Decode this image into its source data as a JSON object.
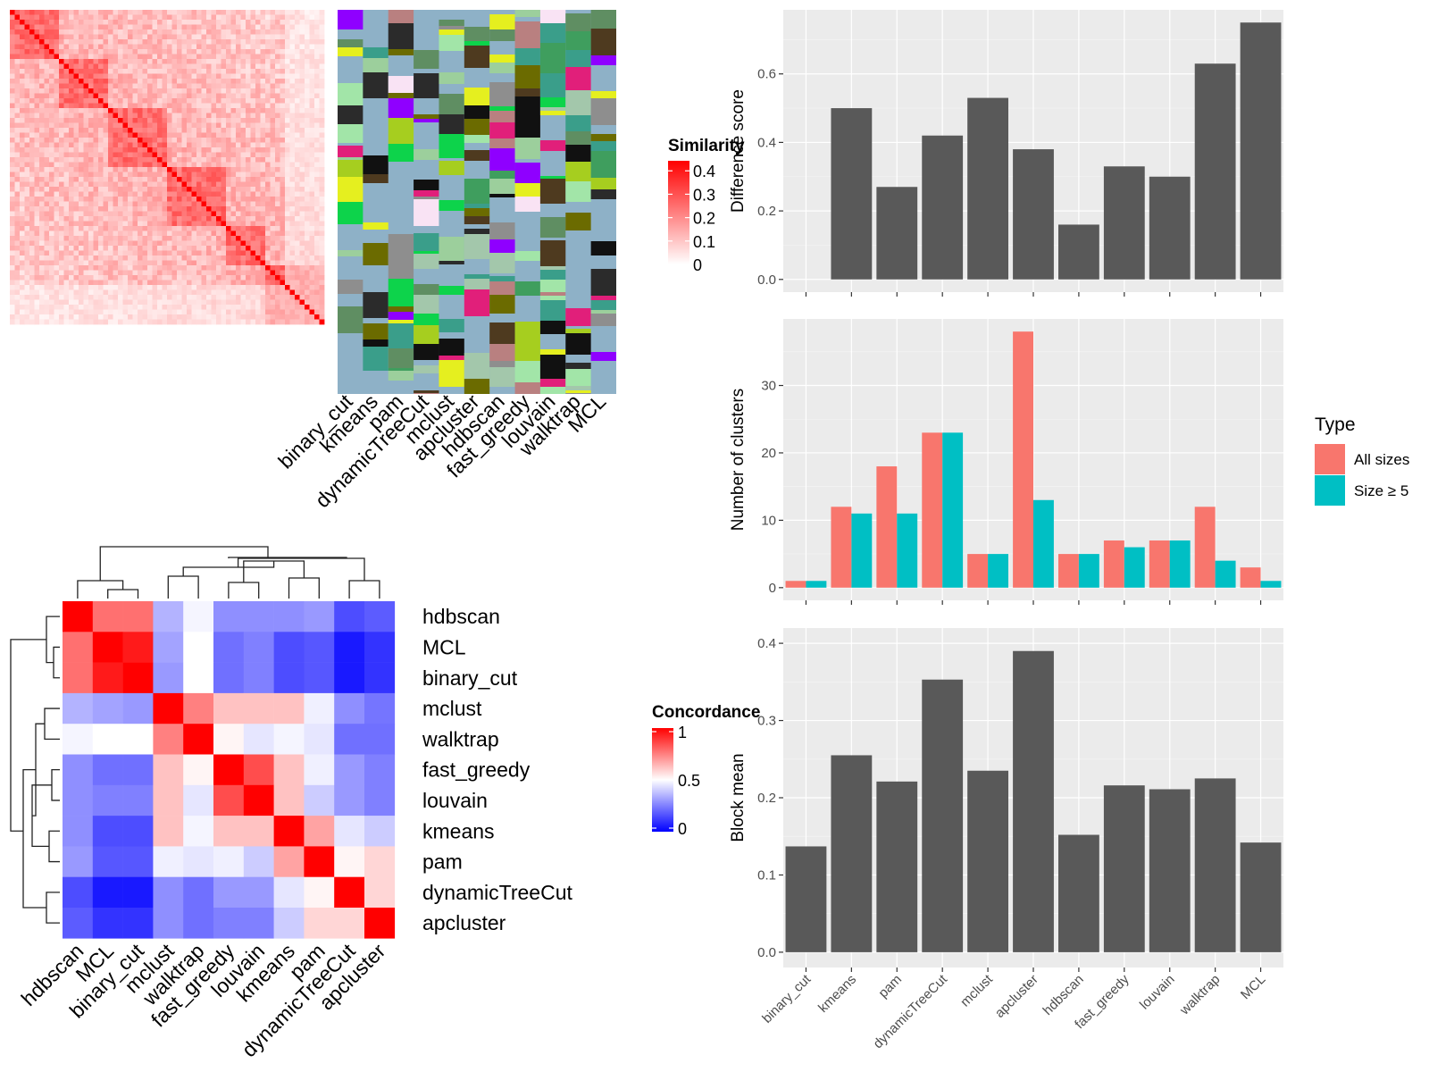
{
  "methods": [
    "binary_cut",
    "kmeans",
    "pam",
    "dynamicTreeCut",
    "mclust",
    "apcluster",
    "hdbscan",
    "fast_greedy",
    "louvain",
    "walktrap",
    "MCL"
  ],
  "similarity_legend": {
    "title": "Similarity",
    "ticks": [
      "0.4",
      "0.3",
      "0.2",
      "0.1",
      "0"
    ]
  },
  "concordance_legend": {
    "title": "Concordance",
    "ticks": [
      "1",
      "0.5",
      "0"
    ]
  },
  "concordance_order": [
    "hdbscan",
    "MCL",
    "binary_cut",
    "mclust",
    "walktrap",
    "fast_greedy",
    "louvain",
    "kmeans",
    "pam",
    "dynamicTreeCut",
    "apcluster"
  ],
  "concordance_matrix": [
    [
      1.0,
      0.78,
      0.78,
      0.35,
      0.48,
      0.28,
      0.28,
      0.28,
      0.3,
      0.15,
      0.18
    ],
    [
      0.78,
      1.0,
      0.95,
      0.32,
      0.5,
      0.22,
      0.25,
      0.15,
      0.17,
      0.05,
      0.1
    ],
    [
      0.78,
      0.95,
      1.0,
      0.3,
      0.5,
      0.22,
      0.25,
      0.15,
      0.17,
      0.05,
      0.1
    ],
    [
      0.35,
      0.32,
      0.3,
      1.0,
      0.75,
      0.62,
      0.62,
      0.62,
      0.47,
      0.28,
      0.23
    ],
    [
      0.48,
      0.5,
      0.5,
      0.75,
      1.0,
      0.52,
      0.45,
      0.48,
      0.45,
      0.22,
      0.22
    ],
    [
      0.28,
      0.22,
      0.22,
      0.62,
      0.52,
      1.0,
      0.85,
      0.62,
      0.47,
      0.3,
      0.25
    ],
    [
      0.28,
      0.25,
      0.25,
      0.62,
      0.45,
      0.85,
      1.0,
      0.62,
      0.4,
      0.3,
      0.25
    ],
    [
      0.28,
      0.15,
      0.15,
      0.62,
      0.48,
      0.62,
      0.62,
      1.0,
      0.68,
      0.45,
      0.4
    ],
    [
      0.3,
      0.17,
      0.17,
      0.47,
      0.45,
      0.47,
      0.4,
      0.68,
      1.0,
      0.52,
      0.58
    ],
    [
      0.15,
      0.05,
      0.05,
      0.28,
      0.22,
      0.3,
      0.3,
      0.45,
      0.52,
      1.0,
      0.58
    ],
    [
      0.18,
      0.1,
      0.1,
      0.28,
      0.22,
      0.25,
      0.25,
      0.4,
      0.58,
      0.58,
      1.0
    ]
  ],
  "chart_data": [
    {
      "type": "heatmap",
      "title": "",
      "description_note": "",
      "legend_title": "Similarity",
      "scale": [
        0,
        0.4
      ]
    },
    {
      "type": "heatmap",
      "legend_title": "Concordance",
      "rows": [
        "hdbscan",
        "MCL",
        "binary_cut",
        "mclust",
        "walktrap",
        "fast_greedy",
        "louvain",
        "kmeans",
        "pam",
        "dynamicTreeCut",
        "apcluster"
      ],
      "cols": [
        "hdbscan",
        "MCL",
        "binary_cut",
        "mclust",
        "walktrap",
        "fast_greedy",
        "louvain",
        "kmeans",
        "pam",
        "dynamicTreeCut",
        "apcluster"
      ],
      "scale": [
        0,
        1
      ]
    },
    {
      "type": "bar",
      "categories": [
        "binary_cut",
        "kmeans",
        "pam",
        "dynamicTreeCut",
        "mclust",
        "apcluster",
        "hdbscan",
        "fast_greedy",
        "louvain",
        "walktrap",
        "MCL"
      ],
      "values": [
        0,
        0.5,
        0.27,
        0.42,
        0.53,
        0.38,
        0.16,
        0.33,
        0.3,
        0.63,
        0.75
      ],
      "ylabel": "Difference score",
      "ylim": [
        0,
        0.75
      ],
      "yticks": [
        "0.0",
        "0.2",
        "0.4",
        "0.6"
      ]
    },
    {
      "type": "bar",
      "categories": [
        "binary_cut",
        "kmeans",
        "pam",
        "dynamicTreeCut",
        "mclust",
        "apcluster",
        "hdbscan",
        "fast_greedy",
        "louvain",
        "walktrap",
        "MCL"
      ],
      "series": [
        {
          "name": "All sizes",
          "values": [
            1,
            12,
            18,
            23,
            5,
            38,
            5,
            7,
            7,
            12,
            3
          ],
          "color": "#f8766d"
        },
        {
          "name": "Size ≥ 5",
          "values": [
            1,
            11,
            11,
            23,
            5,
            13,
            5,
            6,
            7,
            4,
            1
          ],
          "color": "#00bfc4"
        }
      ],
      "ylabel": "Number of clusters",
      "ylim": [
        0,
        38
      ],
      "yticks": [
        "0",
        "10",
        "20",
        "30"
      ],
      "legend": {
        "title": "Type",
        "position": "right"
      }
    },
    {
      "type": "bar",
      "categories": [
        "binary_cut",
        "kmeans",
        "pam",
        "dynamicTreeCut",
        "mclust",
        "apcluster",
        "hdbscan",
        "fast_greedy",
        "louvain",
        "walktrap",
        "MCL"
      ],
      "values": [
        0.137,
        0.255,
        0.221,
        0.353,
        0.235,
        0.39,
        0.152,
        0.216,
        0.211,
        0.225,
        0.142
      ],
      "ylabel": "Block mean",
      "ylim": [
        0,
        0.4
      ],
      "yticks": [
        "0.0",
        "0.1",
        "0.2",
        "0.3",
        "0.4"
      ]
    }
  ]
}
